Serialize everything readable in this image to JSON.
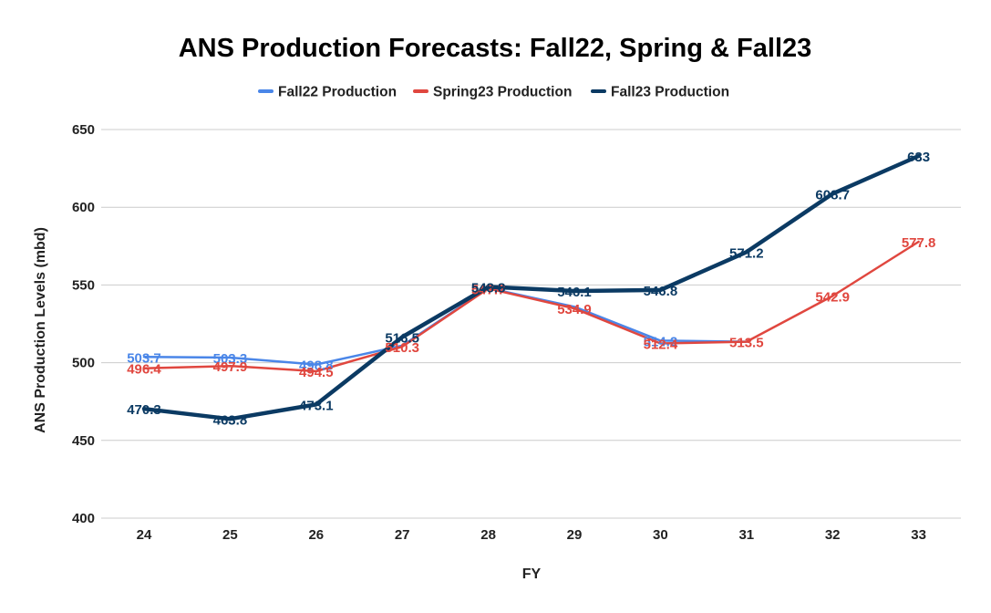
{
  "chart_data": {
    "type": "line",
    "title": "ANS Production Forecasts: Fall22, Spring & Fall23",
    "xlabel": "FY",
    "ylabel": "ANS Production Levels (mbd)",
    "x": [
      "24",
      "25",
      "26",
      "27",
      "28",
      "29",
      "30",
      "31",
      "32",
      "33"
    ],
    "ylim": [
      400,
      650
    ],
    "yticks": [
      "400",
      "450",
      "500",
      "550",
      "600",
      "650"
    ],
    "grid": true,
    "legend_position": "top",
    "series": [
      {
        "name": "Fall22 Production",
        "color": "#4a86e8",
        "values": [
          503.7,
          503.3,
          498.8,
          511.0,
          548.0,
          536.0,
          514.2,
          513.5,
          null,
          null
        ],
        "labels": [
          "503.7",
          "503.3",
          "498.8",
          "",
          "",
          "",
          "514.2",
          "",
          "",
          ""
        ]
      },
      {
        "name": "Spring23 Production",
        "color": "#e0473f",
        "values": [
          496.4,
          497.9,
          494.5,
          510.3,
          547.7,
          534.9,
          512.4,
          513.5,
          542.9,
          577.8
        ],
        "labels": [
          "496.4",
          "497.9",
          "494.5",
          "510.3",
          "547.7",
          "534.9",
          "512.4",
          "513.5",
          "542.9",
          "577.8"
        ]
      },
      {
        "name": "Fall23 Production",
        "color": "#0b3a63",
        "values": [
          470.3,
          463.8,
          473.1,
          516.5,
          548.8,
          546.1,
          546.8,
          571.2,
          608.7,
          633
        ],
        "labels": [
          "470.3",
          "463.8",
          "473.1",
          "516.5",
          "548.8",
          "546.1",
          "546.8",
          "571.2",
          "608.7",
          "633"
        ]
      }
    ]
  }
}
